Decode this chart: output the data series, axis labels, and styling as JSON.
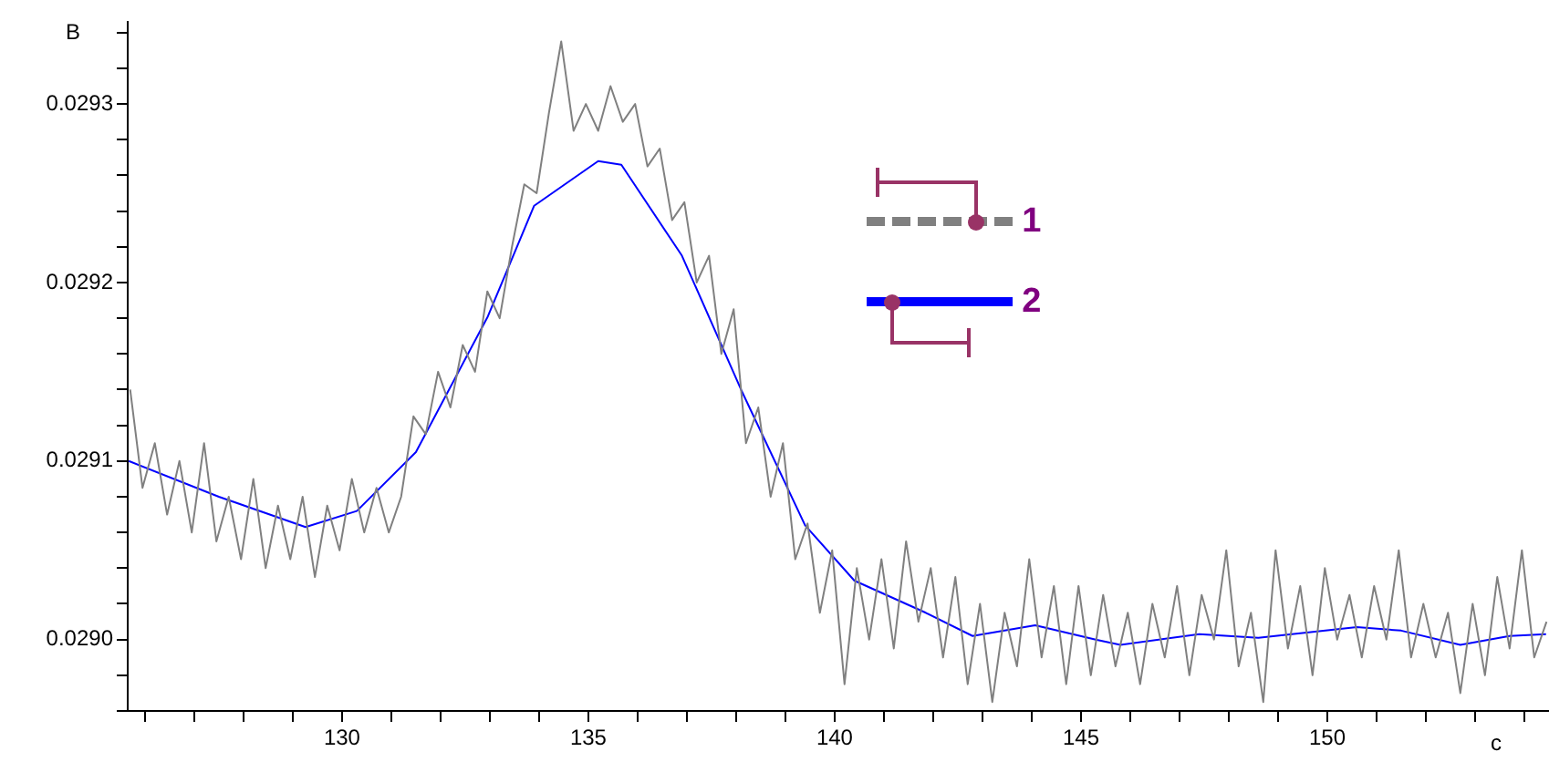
{
  "chart_data": {
    "type": "line",
    "xlabel": "c",
    "ylabel": "B",
    "legend": "top right",
    "grid": false,
    "marker": "none",
    "xlim": [
      125.65,
      154.5
    ],
    "xticks": [
      {
        "value": 126,
        "label": null
      },
      {
        "value": 127,
        "label": null
      },
      {
        "value": 128,
        "label": null
      },
      {
        "value": 129,
        "label": null
      },
      130,
      {
        "value": 131,
        "label": null
      },
      {
        "value": 132,
        "label": null
      },
      {
        "value": 133,
        "label": null
      },
      {
        "value": 134,
        "label": null
      },
      135,
      {
        "value": 136,
        "label": null
      },
      {
        "value": 137,
        "label": null
      },
      {
        "value": 138,
        "label": null
      },
      {
        "value": 139,
        "label": null
      },
      140,
      {
        "value": 141,
        "label": null
      },
      {
        "value": 142,
        "label": null
      },
      {
        "value": 143,
        "label": null
      },
      {
        "value": 144,
        "label": null
      },
      145,
      {
        "value": 146,
        "label": null
      },
      {
        "value": 147,
        "label": null
      },
      {
        "value": 148,
        "label": null
      },
      {
        "value": 149,
        "label": null
      },
      150,
      {
        "value": 151,
        "label": null
      },
      {
        "value": 152,
        "label": null
      },
      {
        "value": 153,
        "label": null
      },
      {
        "value": 154,
        "label": null
      }
    ],
    "ylim": [
      0.02896,
      0.029346
    ],
    "yticks": [
      {
        "value": 0.02896,
        "label": null
      },
      {
        "value": 0.02898,
        "label": null
      },
      {
        "value": 0.029,
        "label": "0.0290"
      },
      {
        "value": 0.02902,
        "label": null
      },
      {
        "value": 0.02904,
        "label": null
      },
      {
        "value": 0.02906,
        "label": null
      },
      {
        "value": 0.02908,
        "label": null
      },
      {
        "value": 0.0291,
        "label": "0.0291"
      },
      {
        "value": 0.02912,
        "label": null
      },
      {
        "value": 0.02914,
        "label": null
      },
      {
        "value": 0.02916,
        "label": null
      },
      {
        "value": 0.02918,
        "label": null
      },
      {
        "value": 0.0292,
        "label": "0.0292"
      },
      {
        "value": 0.02922,
        "label": null
      },
      {
        "value": 0.02924,
        "label": null
      },
      {
        "value": 0.02926,
        "label": null
      },
      {
        "value": 0.02928,
        "label": null
      },
      {
        "value": 0.0293,
        "label": "0.0293"
      },
      {
        "value": 0.02932,
        "label": null
      },
      {
        "value": 0.02934,
        "label": null
      }
    ],
    "x": [
      125.7,
      125.95,
      126.2,
      126.45,
      126.7,
      126.95,
      127.2,
      127.45,
      127.7,
      127.95,
      128.2,
      128.45,
      128.7,
      128.95,
      129.2,
      129.45,
      129.7,
      129.95,
      130.2,
      130.45,
      130.7,
      130.95,
      131.2,
      131.45,
      131.7,
      131.95,
      132.2,
      132.45,
      132.7,
      132.95,
      133.2,
      133.45,
      133.7,
      133.95,
      134.2,
      134.45,
      134.7,
      134.95,
      135.2,
      135.45,
      135.7,
      135.95,
      136.2,
      136.45,
      136.7,
      136.95,
      137.2,
      137.45,
      137.7,
      137.95,
      138.2,
      138.45,
      138.7,
      138.95,
      139.2,
      139.45,
      139.7,
      139.95,
      140.2,
      140.45,
      140.7,
      140.95,
      141.2,
      141.45,
      141.7,
      141.95,
      142.2,
      142.45,
      142.7,
      142.95,
      143.2,
      143.45,
      143.7,
      143.95,
      144.2,
      144.45,
      144.7,
      144.95,
      145.2,
      145.45,
      145.7,
      145.95,
      146.2,
      146.45,
      146.7,
      146.95,
      147.2,
      147.45,
      147.7,
      147.95,
      148.2,
      148.45,
      148.7,
      148.95,
      149.2,
      149.45,
      149.7,
      149.95,
      150.2,
      150.45,
      150.7,
      150.95,
      151.2,
      151.45,
      151.7,
      151.95,
      152.2,
      152.45,
      152.7,
      152.95,
      153.2,
      153.45,
      153.7,
      153.95,
      154.2,
      154.45
    ],
    "series": [
      {
        "name": "1",
        "color": "#808080",
        "values": [
          0.02914,
          0.029085,
          0.02911,
          0.02907,
          0.0291,
          0.02906,
          0.02911,
          0.029055,
          0.02908,
          0.029045,
          0.02909,
          0.02904,
          0.029075,
          0.029045,
          0.02908,
          0.029035,
          0.029075,
          0.02905,
          0.02909,
          0.02906,
          0.029085,
          0.02906,
          0.02908,
          0.029125,
          0.029115,
          0.02915,
          0.02913,
          0.029165,
          0.02915,
          0.029195,
          0.02918,
          0.02922,
          0.029255,
          0.02925,
          0.029295,
          0.029335,
          0.029285,
          0.0293,
          0.029285,
          0.02931,
          0.02929,
          0.0293,
          0.029265,
          0.029275,
          0.029235,
          0.029245,
          0.0292,
          0.029215,
          0.02916,
          0.029185,
          0.02911,
          0.02913,
          0.02908,
          0.02911,
          0.029045,
          0.029065,
          0.029015,
          0.02905,
          0.028975,
          0.02904,
          0.029,
          0.029045,
          0.028995,
          0.029055,
          0.02901,
          0.02904,
          0.02899,
          0.029035,
          0.028975,
          0.02902,
          0.028965,
          0.029015,
          0.028985,
          0.029045,
          0.02899,
          0.02903,
          0.028975,
          0.02903,
          0.02898,
          0.029025,
          0.028985,
          0.029015,
          0.028975,
          0.02902,
          0.02899,
          0.02903,
          0.02898,
          0.029025,
          0.029,
          0.02905,
          0.028985,
          0.029015,
          0.028965,
          0.02905,
          0.028995,
          0.02903,
          0.02898,
          0.02904,
          0.029,
          0.029025,
          0.02899,
          0.02903,
          0.029,
          0.02905,
          0.02899,
          0.02902,
          0.02899,
          0.029015,
          0.02897,
          0.02902,
          0.02898,
          0.029035,
          0.028995,
          0.02905,
          0.02899,
          0.02901
        ]
      },
      {
        "name": "2",
        "color": "#0000ff",
        "x": [
          125.67,
          127.5,
          129.26,
          130.3,
          131.5,
          132.96,
          133.9,
          135.2,
          135.67,
          136.9,
          138.1,
          139.4,
          140.4,
          141.85,
          142.8,
          144.07,
          145.3,
          145.8,
          147.4,
          148.6,
          150.6,
          151.5,
          152.7,
          153.7,
          154.44
        ],
        "values": [
          0.0291,
          0.02908,
          0.029063,
          0.029072,
          0.029105,
          0.029181,
          0.029243,
          0.029268,
          0.029266,
          0.029215,
          0.02914,
          0.029064,
          0.029033,
          0.029015,
          0.029002,
          0.029008,
          0.029,
          0.028997,
          0.029003,
          0.029001,
          0.029007,
          0.029005,
          0.028997,
          0.029002,
          0.029003
        ]
      }
    ]
  }
}
